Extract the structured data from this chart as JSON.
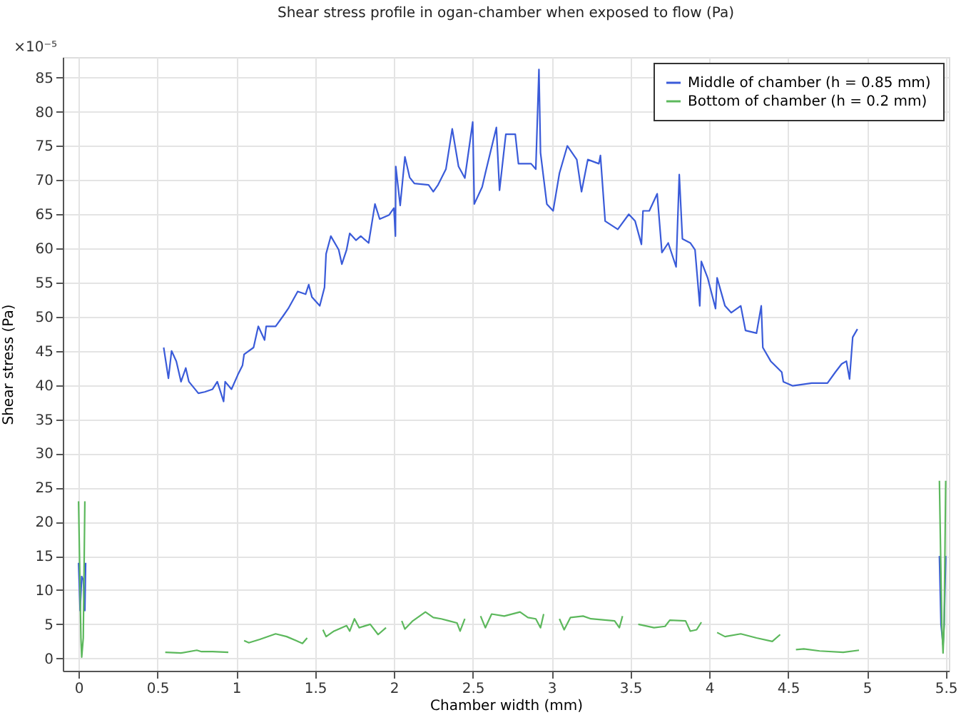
{
  "chart_data": {
    "type": "line",
    "title": "Shear stress profile in ogan-chamber when exposed to flow (Pa)",
    "xlabel": "Chamber width (mm)",
    "ylabel": "Shear stress (Pa)",
    "annotations": [
      "×10⁻⁵"
    ],
    "xlim": [
      -0.1,
      5.52
    ],
    "ylim": [
      -1.8,
      88
    ],
    "xticks": [
      0,
      0.5,
      1,
      1.5,
      2,
      2.5,
      3,
      3.5,
      4,
      4.5,
      5,
      5.5
    ],
    "yticks": [
      0,
      5,
      10,
      15,
      20,
      25,
      30,
      35,
      40,
      45,
      50,
      55,
      60,
      65,
      70,
      75,
      80,
      85
    ],
    "grid": true,
    "legend": "top right",
    "marker": "none",
    "line_style": "solid",
    "series": [
      {
        "name": "Middle of chamber (h = 0.85 mm)",
        "color": "#3a5bd9",
        "x": [
          0,
          0.01,
          0.02,
          0.03,
          0.04,
          0.045,
          0.3,
          0.54,
          0.57,
          0.59,
          0.62,
          0.65,
          0.68,
          0.7,
          0.76,
          0.8,
          0.85,
          0.88,
          0.92,
          0.93,
          0.97,
          1.01,
          1.04,
          1.05,
          1.11,
          1.14,
          1.18,
          1.19,
          1.25,
          1.3,
          1.33,
          1.39,
          1.44,
          1.46,
          1.48,
          1.53,
          1.56,
          1.57,
          1.6,
          1.65,
          1.67,
          1.7,
          1.72,
          1.76,
          1.79,
          1.84,
          1.88,
          1.91,
          1.97,
          2.0,
          2.01,
          2.012,
          2.04,
          2.07,
          2.1,
          2.13,
          2.22,
          2.25,
          2.28,
          2.33,
          2.37,
          2.41,
          2.45,
          2.5,
          2.51,
          2.56,
          2.58,
          2.65,
          2.67,
          2.71,
          2.77,
          2.79,
          2.87,
          2.9,
          2.92,
          2.93,
          2.97,
          3.01,
          3.05,
          3.1,
          3.16,
          3.19,
          3.23,
          3.3,
          3.31,
          3.34,
          3.42,
          3.49,
          3.53,
          3.57,
          3.58,
          3.62,
          3.67,
          3.7,
          3.74,
          3.79,
          3.81,
          3.83,
          3.88,
          3.91,
          3.94,
          3.95,
          3.99,
          4.04,
          4.05,
          4.1,
          4.14,
          4.2,
          4.23,
          4.3,
          4.33,
          4.34,
          4.39,
          4.46,
          4.47,
          4.53,
          4.65,
          4.75,
          4.8,
          4.84,
          4.87,
          4.89,
          4.91,
          4.94,
          5.2,
          5.46,
          5.47,
          5.483,
          5.49,
          5.5
        ],
        "values": [
          14,
          7,
          12,
          11.5,
          7,
          14,
          null,
          45.5,
          41,
          45,
          43.5,
          40.5,
          42.5,
          40.5,
          38.8,
          39,
          39.4,
          40.5,
          37.6,
          40.5,
          39.4,
          41.5,
          42.9,
          44.5,
          45.5,
          48.6,
          46.6,
          48.6,
          48.6,
          50.2,
          51.2,
          53.7,
          53.3,
          54.7,
          52.9,
          51.6,
          54.3,
          59.2,
          61.8,
          59.8,
          57.7,
          59.8,
          62.2,
          61.2,
          61.8,
          60.8,
          66.5,
          64.3,
          64.9,
          65.9,
          61.8,
          72,
          66.3,
          73.4,
          70.4,
          69.5,
          69.3,
          68.3,
          69.3,
          71.6,
          77.5,
          72,
          70.3,
          78.5,
          66.5,
          69,
          71,
          77.7,
          68.5,
          76.7,
          76.7,
          72.4,
          72.4,
          71.6,
          86.2,
          74,
          66.5,
          65.5,
          71,
          75,
          73,
          68.3,
          73,
          72.4,
          73.6,
          64,
          62.8,
          65,
          64,
          60.6,
          65.5,
          65.5,
          68,
          59.4,
          60.8,
          57.3,
          70.8,
          61.4,
          60.8,
          59.8,
          51.6,
          58.1,
          55.7,
          51.2,
          55.7,
          51.6,
          50.6,
          51.6,
          48,
          47.6,
          51.6,
          45.5,
          43.5,
          41.9,
          40.5,
          39.9,
          40.3,
          40.3,
          41.9,
          43.1,
          43.5,
          40.9,
          47,
          48.2,
          null,
          15,
          5,
          2,
          5,
          15
        ]
      },
      {
        "name": "Bottom of chamber (h = 0.2 mm)",
        "color": "#5cb85c",
        "x": [
          0,
          0.015,
          0.02,
          0.03,
          0.04,
          0.3,
          0.55,
          0.65,
          0.75,
          0.78,
          0.85,
          0.95,
          1.0,
          1.05,
          1.08,
          1.15,
          1.25,
          1.32,
          1.38,
          1.42,
          1.45,
          1.5,
          1.55,
          1.57,
          1.62,
          1.7,
          1.72,
          1.75,
          1.78,
          1.85,
          1.9,
          1.95,
          2.0,
          2.05,
          2.07,
          2.12,
          2.2,
          2.25,
          2.3,
          2.35,
          2.4,
          2.42,
          2.45,
          2.5,
          2.55,
          2.58,
          2.62,
          2.7,
          2.8,
          2.85,
          2.9,
          2.93,
          2.95,
          3.0,
          3.05,
          3.08,
          3.12,
          3.2,
          3.25,
          3.4,
          3.43,
          3.45,
          3.5,
          3.55,
          3.65,
          3.72,
          3.75,
          3.85,
          3.88,
          3.92,
          3.95,
          4.0,
          4.05,
          4.1,
          4.2,
          4.3,
          4.4,
          4.45,
          4.5,
          4.55,
          4.6,
          4.7,
          4.85,
          4.95,
          5.2,
          5.46,
          5.475,
          5.483,
          5.49,
          5.5
        ],
        "values": [
          23,
          3,
          0.2,
          3,
          23,
          null,
          0.9,
          0.8,
          1.2,
          1.0,
          1.0,
          0.9,
          null,
          2.6,
          2.3,
          2.8,
          3.6,
          3.2,
          2.6,
          2.2,
          3.0,
          null,
          4.2,
          3.2,
          4.0,
          4.8,
          4.0,
          5.8,
          4.5,
          5.0,
          3.5,
          4.5,
          null,
          5.5,
          4.3,
          5.5,
          6.8,
          6.0,
          5.8,
          5.5,
          5.2,
          4.0,
          5.8,
          null,
          6.2,
          4.5,
          6.5,
          6.2,
          6.8,
          6.0,
          5.8,
          4.5,
          6.5,
          null,
          5.8,
          4.2,
          6.0,
          6.2,
          5.8,
          5.5,
          4.5,
          6.2,
          null,
          5.0,
          4.5,
          4.7,
          5.6,
          5.5,
          4.0,
          4.2,
          5.3,
          null,
          3.8,
          3.2,
          3.6,
          3.0,
          2.5,
          3.5,
          null,
          1.3,
          1.4,
          1.1,
          0.9,
          1.2,
          null,
          26,
          5,
          0.8,
          5,
          26
        ]
      }
    ]
  }
}
